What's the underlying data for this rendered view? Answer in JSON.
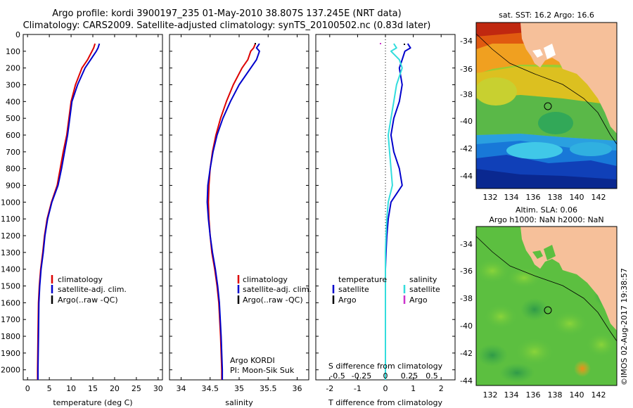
{
  "header": {
    "title_line1": "Argo profile: kordi 3900197_235 01-May-2010 38.807S 137.245E (NRT data)",
    "title_line2": "Climatology: CARS2009. Satellite-adjusted climatology: synTS_20100502.nc (0.83d later)"
  },
  "colors": {
    "climatology": "#dd0000",
    "satellite": "#0000cc",
    "argo": "#000000",
    "sat_salinity": "#33dddd",
    "argo_salinity": "#cc33cc",
    "land": "#f6c09a"
  },
  "chart_data": [
    {
      "type": "line",
      "name": "temperature-profile",
      "xlabel": "temperature (deg C)",
      "xlim": [
        -1,
        31
      ],
      "ylim": [
        2060,
        0
      ],
      "xticks": [
        0,
        5,
        10,
        15,
        20,
        25,
        30
      ],
      "yticks": [
        0,
        100,
        200,
        300,
        400,
        500,
        600,
        700,
        800,
        900,
        1000,
        1100,
        1200,
        1300,
        1400,
        1500,
        1600,
        1700,
        1800,
        1900,
        2000
      ],
      "legend": [
        "climatology",
        "satellite-adj. clim.",
        "Argo(..raw -QC)"
      ],
      "series": [
        {
          "name": "climatology",
          "color": "#dd0000",
          "x": [
            15.5,
            15.2,
            14.8,
            13.8,
            12.5,
            11.0,
            10.0,
            9.5,
            9.0,
            8.2,
            7.5,
            6.8,
            5.5,
            4.5,
            3.9,
            3.5,
            3.0,
            2.7,
            2.5,
            2.4,
            2.3,
            2.3
          ],
          "y": [
            55,
            80,
            100,
            150,
            200,
            300,
            400,
            500,
            600,
            700,
            800,
            900,
            1000,
            1100,
            1200,
            1300,
            1400,
            1500,
            1600,
            1800,
            2000,
            2060
          ]
        },
        {
          "name": "satellite-adj. clim.",
          "color": "#0000cc",
          "x": [
            16.5,
            16.2,
            15.8,
            14.5,
            13.2,
            11.5,
            10.2,
            9.7,
            9.2,
            8.5,
            7.8,
            7.0,
            5.6,
            4.6,
            4.0,
            3.6,
            3.1,
            2.8,
            2.6,
            2.5,
            2.4,
            2.4
          ],
          "y": [
            55,
            80,
            100,
            150,
            200,
            300,
            400,
            500,
            600,
            700,
            800,
            900,
            1000,
            1100,
            1200,
            1300,
            1400,
            1500,
            1600,
            1800,
            2000,
            2060
          ]
        }
      ]
    },
    {
      "type": "line",
      "name": "salinity-profile",
      "xlabel": "salinity",
      "xlim": [
        33.8,
        36.2
      ],
      "ylim": [
        2060,
        0
      ],
      "xticks": [
        34,
        34.5,
        35,
        35.5,
        36
      ],
      "xtick_labels": [
        "34",
        "34.5",
        "35",
        "35.5",
        "36"
      ],
      "legend": [
        "climatology",
        "satellite-adj. clim.",
        "Argo(..raw -QC)"
      ],
      "annotation_line1": "Argo KORDI",
      "annotation_line2": "PI: Moon-Sik Suk",
      "series": [
        {
          "name": "climatology",
          "color": "#dd0000",
          "x": [
            35.28,
            35.25,
            35.2,
            35.15,
            35.05,
            34.9,
            34.78,
            34.68,
            34.6,
            34.54,
            34.5,
            34.48,
            34.47,
            34.48,
            34.5,
            34.53,
            34.58,
            34.62,
            34.65,
            34.68,
            34.7,
            34.7
          ],
          "y": [
            55,
            80,
            100,
            150,
            200,
            300,
            400,
            500,
            600,
            700,
            800,
            900,
            1000,
            1100,
            1200,
            1300,
            1400,
            1500,
            1600,
            1800,
            2000,
            2060
          ]
        },
        {
          "name": "satellite-adj. clim.",
          "color": "#0000cc",
          "x": [
            35.35,
            35.3,
            35.35,
            35.3,
            35.2,
            35.0,
            34.85,
            34.72,
            34.62,
            34.55,
            34.5,
            34.46,
            34.45,
            34.47,
            34.5,
            34.54,
            34.59,
            34.63,
            34.66,
            34.69,
            34.71,
            34.71
          ],
          "y": [
            55,
            80,
            100,
            150,
            200,
            300,
            400,
            500,
            600,
            700,
            800,
            900,
            1000,
            1100,
            1200,
            1300,
            1400,
            1500,
            1600,
            1800,
            2000,
            2060
          ]
        }
      ]
    },
    {
      "type": "line",
      "name": "difference-profile",
      "xlabel": "T difference from climatology",
      "xlabel_top": "S difference from climatology",
      "xlim": [
        -2.5,
        2.5
      ],
      "ylim": [
        2060,
        0
      ],
      "xticks": [
        -2,
        -1,
        0,
        1,
        2
      ],
      "top_tick_labels": [
        "-0.5",
        "-0.25",
        "0",
        "0.25",
        "0.5"
      ],
      "legend_temperature": [
        "temperature",
        "satellite",
        "Argo"
      ],
      "legend_salinity": [
        "salinity",
        "satellite",
        "Argo"
      ],
      "series": [
        {
          "name": "temperature satellite",
          "color": "#0000cc",
          "x": [
            0.8,
            0.9,
            0.7,
            0.6,
            0.5,
            0.6,
            0.5,
            0.3,
            0.2,
            0.3,
            0.5,
            0.6,
            0.2,
            0.1,
            0.05,
            0.02,
            0.0,
            0.0,
            0.0,
            0.0,
            0.0
          ],
          "y": [
            55,
            80,
            100,
            150,
            200,
            300,
            400,
            500,
            600,
            700,
            800,
            900,
            1000,
            1100,
            1200,
            1300,
            1400,
            1500,
            1600,
            1800,
            2060
          ]
        },
        {
          "name": "salinity satellite",
          "color": "#33dddd",
          "x": [
            0.3,
            0.4,
            0.2,
            0.5,
            0.6,
            0.4,
            0.3,
            0.2,
            0.1,
            0.15,
            0.2,
            0.25,
            0.1,
            0.05,
            0.02,
            0.0,
            0.0,
            0.0,
            0.0,
            0.0,
            0.0
          ],
          "y": [
            55,
            80,
            100,
            150,
            200,
            300,
            400,
            500,
            600,
            700,
            800,
            900,
            1000,
            1100,
            1200,
            1300,
            1400,
            1500,
            1600,
            1800,
            2060
          ]
        }
      ]
    }
  ],
  "maps": {
    "sst": {
      "title": "sat. SST: 16.2 Argo: 16.6",
      "xticks": [
        "132",
        "134",
        "136",
        "138",
        "140",
        "142"
      ],
      "yticks": [
        "-34",
        "-36",
        "-38",
        "-40",
        "-42",
        "-44"
      ]
    },
    "sla": {
      "title_line1": "Altim. SLA: 0.06",
      "title_line2": "Argo h1000: NaN h2000: NaN",
      "xticks": [
        "132",
        "134",
        "136",
        "138",
        "140",
        "142"
      ],
      "yticks": [
        "-34",
        "-36",
        "-38",
        "-40",
        "-42",
        "-44"
      ]
    }
  },
  "footer": {
    "stamp": "©IMOS 02-Aug-2017 19:38:57"
  }
}
